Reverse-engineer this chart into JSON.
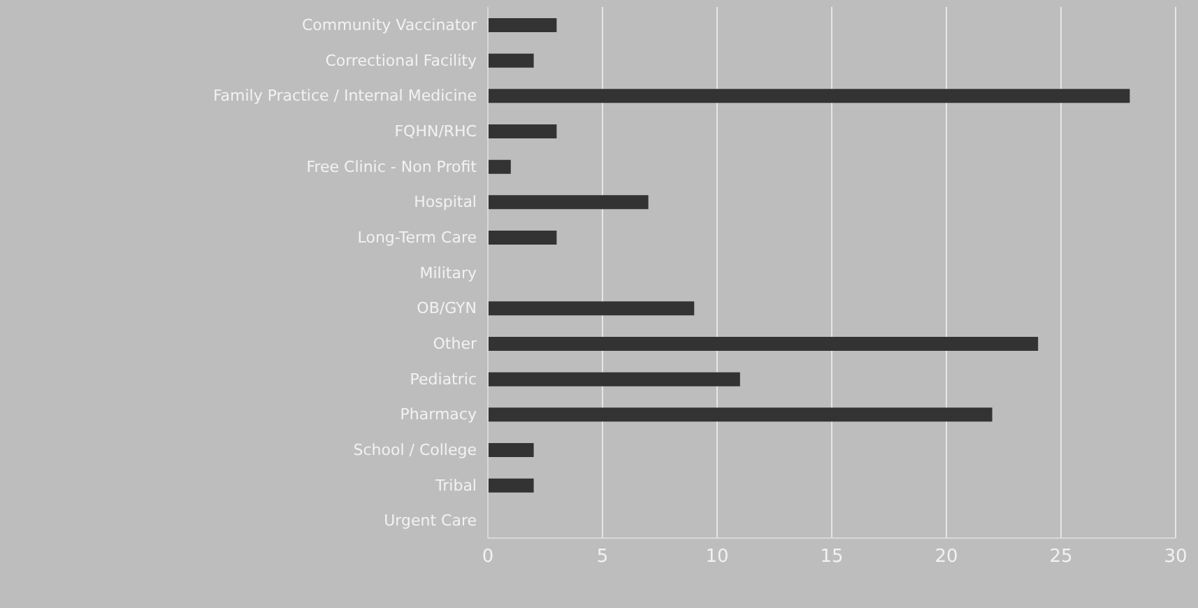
{
  "chart_data": {
    "type": "bar",
    "orientation": "horizontal",
    "categories": [
      "Community Vaccinator",
      "Correctional Facility",
      "Family Practice / Internal Medicine",
      "FQHN/RHC",
      "Free Clinic - Non Profit",
      "Hospital",
      "Long-Term Care",
      "Military",
      "OB/GYN",
      "Other",
      "Pediatric",
      "Pharmacy",
      "School / College",
      "Tribal",
      "Urgent Care"
    ],
    "values": [
      3,
      2,
      28,
      3,
      1,
      7,
      3,
      0,
      9,
      24,
      11,
      22,
      2,
      2,
      0
    ],
    "color": "#333333",
    "xlim": [
      0,
      30
    ],
    "xticks": [
      0,
      5,
      10,
      15,
      20,
      25,
      30
    ],
    "grid": "x"
  }
}
